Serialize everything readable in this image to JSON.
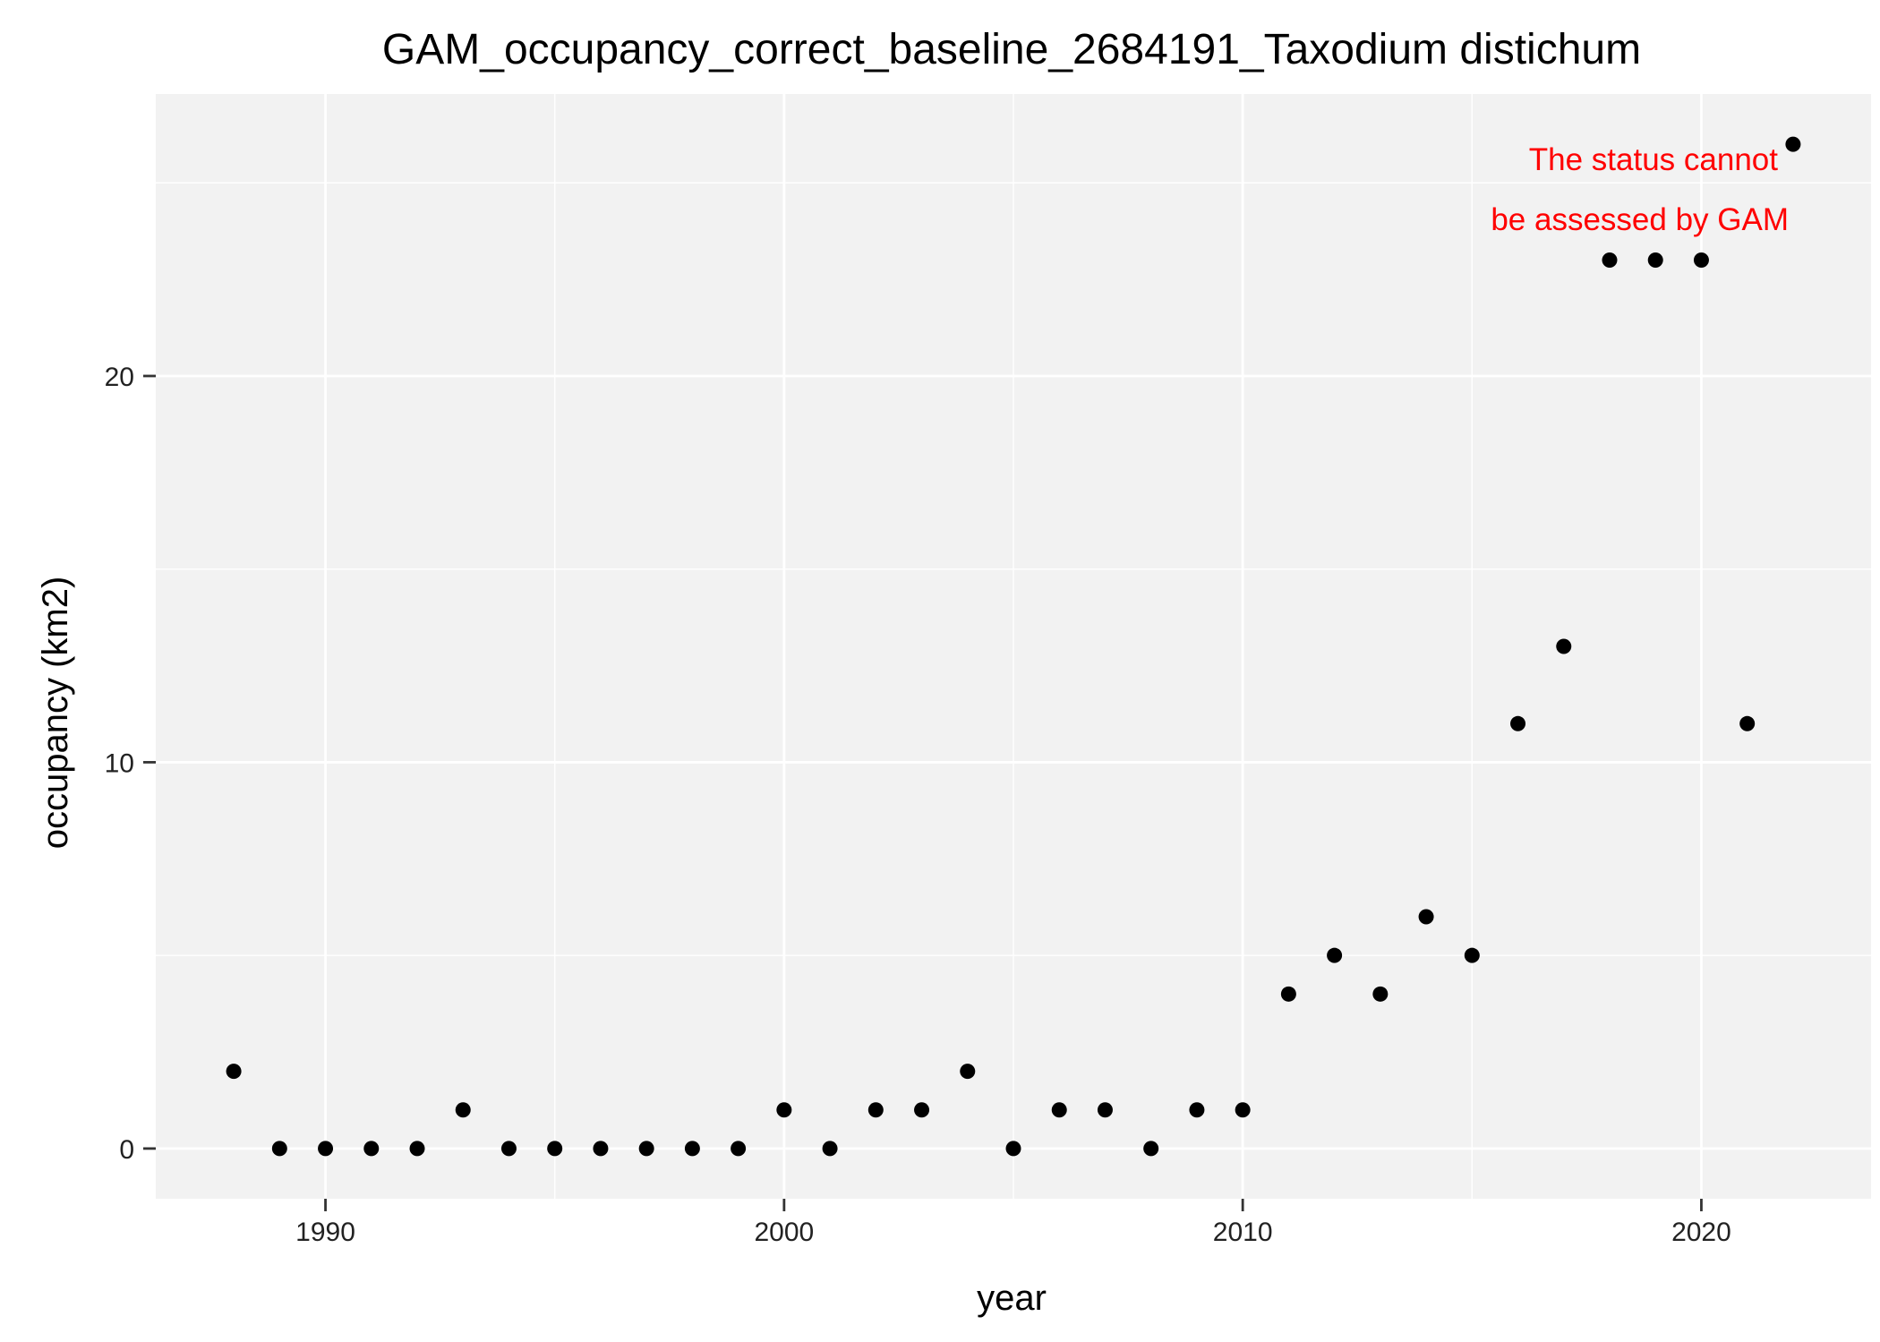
{
  "chart_data": {
    "type": "scatter",
    "title": "GAM_occupancy_correct_baseline_2684191_Taxodium distichum",
    "xlabel": "year",
    "ylabel": "occupancy (km2)",
    "xlim": [
      1986.3,
      2023.7
    ],
    "ylim": [
      -1.3,
      27.3
    ],
    "x_ticks": [
      1990,
      2000,
      2010,
      2020
    ],
    "x_minor_ticks": [
      1995,
      2005,
      2015
    ],
    "y_ticks": [
      0,
      10,
      20
    ],
    "y_minor_ticks": [
      5,
      15,
      25
    ],
    "grid": true,
    "legend": "none",
    "point_color": "#000000",
    "panel_color": "#f2f2f2",
    "grid_color": "#ffffff",
    "annotation": {
      "lines": [
        "The status cannot",
        "be assessed by GAM"
      ],
      "color": "#ff0000",
      "position": "top-right"
    },
    "points": [
      {
        "x": 1988,
        "y": 2
      },
      {
        "x": 1989,
        "y": 0
      },
      {
        "x": 1990,
        "y": 0
      },
      {
        "x": 1991,
        "y": 0
      },
      {
        "x": 1992,
        "y": 0
      },
      {
        "x": 1993,
        "y": 1
      },
      {
        "x": 1994,
        "y": 0
      },
      {
        "x": 1995,
        "y": 0
      },
      {
        "x": 1996,
        "y": 0
      },
      {
        "x": 1997,
        "y": 0
      },
      {
        "x": 1998,
        "y": 0
      },
      {
        "x": 1999,
        "y": 0
      },
      {
        "x": 2000,
        "y": 1
      },
      {
        "x": 2001,
        "y": 0
      },
      {
        "x": 2002,
        "y": 1
      },
      {
        "x": 2003,
        "y": 1
      },
      {
        "x": 2004,
        "y": 2
      },
      {
        "x": 2005,
        "y": 0
      },
      {
        "x": 2006,
        "y": 1
      },
      {
        "x": 2007,
        "y": 1
      },
      {
        "x": 2008,
        "y": 0
      },
      {
        "x": 2009,
        "y": 1
      },
      {
        "x": 2010,
        "y": 1
      },
      {
        "x": 2011,
        "y": 4
      },
      {
        "x": 2012,
        "y": 5
      },
      {
        "x": 2013,
        "y": 4
      },
      {
        "x": 2014,
        "y": 6
      },
      {
        "x": 2015,
        "y": 5
      },
      {
        "x": 2016,
        "y": 11
      },
      {
        "x": 2017,
        "y": 13
      },
      {
        "x": 2018,
        "y": 23
      },
      {
        "x": 2019,
        "y": 23
      },
      {
        "x": 2020,
        "y": 23
      },
      {
        "x": 2021,
        "y": 11
      },
      {
        "x": 2022,
        "y": 26
      }
    ]
  }
}
